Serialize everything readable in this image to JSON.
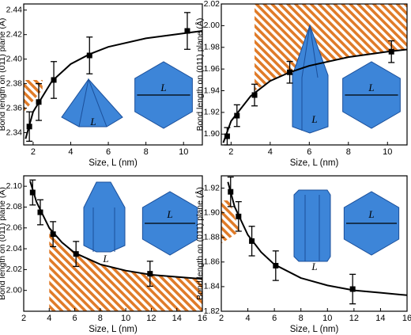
{
  "chart_data": [
    {
      "type": "scatter",
      "y_label": "Bond length on (011) plane (Å)",
      "x_label": "Size, L (nm)",
      "x": [
        1.8,
        2.3,
        3.1,
        5.0,
        10.2
      ],
      "values": [
        2.345,
        2.365,
        2.383,
        2.403,
        2.423
      ],
      "errors": [
        0.012,
        0.015,
        0.015,
        0.015,
        0.015
      ],
      "color": "#000000",
      "fit": {
        "x": [
          1.6,
          2,
          3,
          4,
          5,
          6,
          8,
          10,
          11
        ],
        "y": [
          2.335,
          2.357,
          2.382,
          2.396,
          2.404,
          2.41,
          2.417,
          2.421,
          2.423
        ]
      },
      "hatch": {
        "x": [
          1.5,
          2.5,
          2.5,
          1.5
        ],
        "y": [
          2.383,
          2.383,
          2.375,
          2.357
        ]
      },
      "hatch_color": "#e07b28",
      "inset_labels": [
        "L",
        "L"
      ],
      "inset_color": "#3d85d8",
      "xlim": [
        1.5,
        11
      ],
      "xticks": [
        2,
        4,
        6,
        8,
        10
      ],
      "ylim": [
        2.33,
        2.445
      ],
      "yticks": [
        2.34,
        2.36,
        2.38,
        {
          "value": 2.4,
          "label": "2.40"
        },
        2.42,
        2.44
      ]
    },
    {
      "type": "scatter",
      "y_label": "Bond length on (011) plane (Å)",
      "x_label": "Size, L (nm)",
      "x": [
        1.8,
        2.3,
        3.2,
        5.0,
        10.2
      ],
      "values": [
        1.898,
        1.917,
        1.936,
        1.957,
        1.976
      ],
      "errors": [
        0.008,
        0.01,
        0.01,
        0.01,
        0.01
      ],
      "color": "#000000",
      "fit": {
        "x": [
          1.6,
          2,
          3,
          4,
          5,
          6,
          8,
          10,
          11
        ],
        "y": [
          1.892,
          1.912,
          1.935,
          1.949,
          1.957,
          1.963,
          1.971,
          1.976,
          1.978
        ]
      },
      "hatch": {
        "x": [
          3.2,
          11,
          11,
          10,
          8,
          6,
          5,
          4,
          3.2
        ],
        "y": [
          2.02,
          2.02,
          1.978,
          1.976,
          1.971,
          1.963,
          1.957,
          1.949,
          1.94
        ]
      },
      "hatch_color": "#e07b28",
      "inset_labels": [
        "L",
        "L"
      ],
      "inset_color": "#3d85d8",
      "xlim": [
        1.5,
        11
      ],
      "xticks": [
        2,
        4,
        6,
        8,
        10
      ],
      "ylim": [
        1.89,
        2.02
      ],
      "yticks": [
        {
          "value": 1.9,
          "label": "1.90"
        },
        1.92,
        1.94,
        1.96,
        1.98,
        {
          "value": 2.0,
          "label": "2.00"
        },
        2.02
      ]
    },
    {
      "type": "scatter",
      "y_label": "Bond length on (011) plane (Å)",
      "x_label": "Size, L (nm)",
      "x": [
        2.7,
        3.3,
        4.3,
        6.1,
        11.9
      ],
      "values": [
        2.094,
        2.075,
        2.054,
        2.035,
        2.016
      ],
      "errors": [
        0.012,
        0.012,
        0.012,
        0.012,
        0.012
      ],
      "color": "#000000",
      "fit": {
        "x": [
          2.5,
          3,
          4,
          5,
          6,
          8,
          10,
          12,
          14,
          16
        ],
        "y": [
          2.105,
          2.085,
          2.06,
          2.046,
          2.036,
          2.025,
          2.019,
          2.015,
          2.013,
          2.011
        ]
      },
      "hatch": {
        "x": [
          4,
          5,
          6,
          8,
          10,
          12,
          14,
          16,
          16,
          4
        ],
        "y": [
          2.06,
          2.046,
          2.036,
          2.025,
          2.019,
          2.015,
          2.013,
          2.011,
          1.98,
          1.98
        ]
      },
      "hatch_color": "#e07b28",
      "inset_labels": [
        "L",
        "L"
      ],
      "inset_color": "#3d85d8",
      "xlim": [
        2,
        16
      ],
      "xticks": [
        2,
        4,
        6,
        8,
        10,
        12,
        14,
        16
      ],
      "ylim": [
        1.98,
        2.11
      ],
      "yticks": [
        {
          "value": 2.0,
          "label": "2.00"
        },
        2.02,
        2.04,
        2.06,
        2.08,
        {
          "value": 2.1,
          "label": "2.10"
        }
      ]
    },
    {
      "type": "scatter",
      "y_label": "Bond length on (011) plane (Å)",
      "x_label": "Size, L (nm)",
      "x": [
        2.7,
        3.3,
        4.3,
        6.1,
        11.9
      ],
      "values": [
        1.917,
        1.897,
        1.877,
        1.857,
        1.838
      ],
      "errors": [
        0.012,
        0.012,
        0.012,
        0.012,
        0.012
      ],
      "color": "#000000",
      "fit": {
        "x": [
          2.5,
          3,
          4,
          5,
          6,
          8,
          10,
          12,
          14,
          16
        ],
        "y": [
          1.925,
          1.905,
          1.882,
          1.868,
          1.858,
          1.847,
          1.841,
          1.837,
          1.835,
          1.833
        ]
      },
      "hatch": {
        "x": [
          2,
          2.6,
          3.4,
          2
        ],
        "y": [
          1.91,
          1.91,
          1.885,
          1.875
        ]
      },
      "hatch_color": "#e07b28",
      "inset_labels": [
        "L",
        "L"
      ],
      "inset_color": "#3d85d8",
      "xlim": [
        2,
        16
      ],
      "xticks": [
        2,
        4,
        6,
        8,
        10,
        12,
        14,
        16
      ],
      "ylim": [
        1.82,
        1.93
      ],
      "yticks": [
        1.82,
        1.84,
        1.86,
        1.88,
        {
          "value": 1.9,
          "label": "1.90"
        },
        1.92
      ]
    }
  ]
}
